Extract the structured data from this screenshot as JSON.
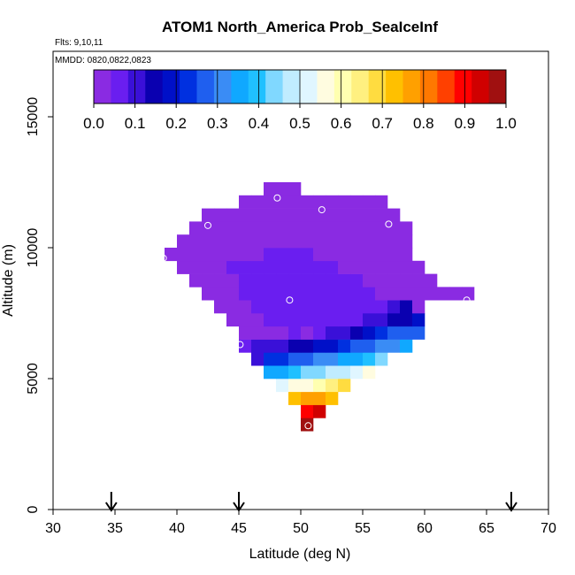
{
  "chart_data": {
    "type": "heatmap",
    "title": "ATOM1 North_America Prob_SeaIceInf",
    "flights_note": "Flts: 9,10,11",
    "dates_note": "MMDD: 0820,0822,0823",
    "xlabel": "Latitude (deg N)",
    "ylabel": "Altitude (m)",
    "xlim": [
      30,
      70
    ],
    "ylim": [
      0,
      17500
    ],
    "xticks": [
      "30",
      "35",
      "40",
      "45",
      "50",
      "55",
      "60",
      "65",
      "70"
    ],
    "yticks": [
      "0",
      "5000",
      "10000",
      "15000"
    ],
    "cell_width_deg": 1,
    "cell_height_m": 500,
    "colorbar": {
      "ticks": [
        "0.0",
        "0.1",
        "0.2",
        "0.3",
        "0.4",
        "0.5",
        "0.6",
        "0.7",
        "0.8",
        "0.9",
        "1.0"
      ],
      "colors": [
        "#8a2be2",
        "#6a1ef0",
        "#3a10d8",
        "#0a00b0",
        "#0010c8",
        "#0030e0",
        "#1f5fef",
        "#3a8cf5",
        "#10a8ff",
        "#20c0ff",
        "#80d8ff",
        "#c0ecff",
        "#e0f6ff",
        "#fffce0",
        "#ffffb0",
        "#fff080",
        "#ffdc40",
        "#ffc000",
        "#ffa000",
        "#ff7800",
        "#ff4000",
        "#ff0000",
        "#d00000",
        "#a01010"
      ]
    },
    "arrows_latitude": [
      34.7,
      45.0,
      67.0
    ],
    "rows": [
      {
        "alt": 3000,
        "lat0": 50,
        "values": [
          0.97
        ]
      },
      {
        "alt": 3500,
        "lat0": 50,
        "values": [
          0.89,
          0.92
        ]
      },
      {
        "alt": 4000,
        "lat0": 49,
        "values": [
          0.72,
          0.76,
          0.78,
          0.74
        ]
      },
      {
        "alt": 4500,
        "lat0": 48,
        "values": [
          0.52,
          0.56,
          0.58,
          0.6,
          0.66,
          0.7
        ]
      },
      {
        "alt": 5000,
        "lat0": 47,
        "values": [
          0.35,
          0.37,
          0.39,
          0.42,
          0.45,
          0.47,
          0.49,
          0.52,
          0.57
        ]
      },
      {
        "alt": 5500,
        "lat0": 46,
        "values": [
          0.12,
          0.22,
          0.24,
          0.26,
          0.28,
          0.3,
          0.32,
          0.34,
          0.36,
          0.38,
          0.42
        ]
      },
      {
        "alt": 6000,
        "lat0": 45,
        "values": [
          0.06,
          0.11,
          0.1,
          0.12,
          0.14,
          0.16,
          0.18,
          0.2,
          0.22,
          0.25,
          0.28,
          0.3,
          0.32,
          0.34
        ]
      },
      {
        "alt": 6500,
        "lat0": 45,
        "values": [
          0.03,
          0.04,
          0.03,
          0.04,
          0.05,
          0.04,
          0.08,
          0.1,
          0.11,
          0.13,
          0.18,
          0.24,
          0.26,
          0.28,
          0.27
        ]
      },
      {
        "alt": 7000,
        "lat0": 44,
        "values": [
          0.02,
          0.03,
          0.04,
          0.05,
          0.06,
          0.05,
          0.05,
          0.05,
          0.06,
          0.07,
          0.08,
          0.1,
          0.12,
          0.14,
          0.16,
          0.18
        ]
      },
      {
        "alt": 7500,
        "lat0": 43,
        "values": [
          0.02,
          0.03,
          0.04,
          0.05,
          0.05,
          0.06,
          0.07,
          0.07,
          0.06,
          0.06,
          0.06,
          0.05,
          0.05,
          0.06,
          0.1,
          0.15,
          0.03
        ]
      },
      {
        "alt": 8000,
        "lat0": 42,
        "values": [
          0.02,
          0.03,
          0.04,
          0.05,
          0.05,
          0.06,
          0.07,
          0.08,
          0.08,
          0.07,
          0.06,
          0.06,
          0.05,
          0.05,
          0.04,
          0.03,
          0.03,
          0.03,
          0.02,
          0.02,
          0.02,
          0.02
        ]
      },
      {
        "alt": 8500,
        "lat0": 41,
        "values": [
          0.02,
          0.03,
          0.04,
          0.04,
          0.05,
          0.05,
          0.06,
          0.06,
          0.07,
          0.07,
          0.07,
          0.06,
          0.05,
          0.05,
          0.04,
          0.04,
          0.04,
          0.03,
          0.03,
          0.03
        ]
      },
      {
        "alt": 9000,
        "lat0": 40,
        "values": [
          0.02,
          0.03,
          0.04,
          0.04,
          0.05,
          0.05,
          0.05,
          0.06,
          0.06,
          0.06,
          0.06,
          0.05,
          0.05,
          0.04,
          0.04,
          0.04,
          0.03,
          0.03,
          0.03,
          0.02
        ]
      },
      {
        "alt": 9500,
        "lat0": 39,
        "values": [
          0.02,
          0.02,
          0.03,
          0.03,
          0.03,
          0.04,
          0.04,
          0.04,
          0.05,
          0.05,
          0.05,
          0.05,
          0.04,
          0.04,
          0.04,
          0.03,
          0.03,
          0.03,
          0.02,
          0.02
        ]
      },
      {
        "alt": 10000,
        "lat0": 40,
        "values": [
          0.02,
          0.02,
          0.02,
          0.03,
          0.03,
          0.03,
          0.03,
          0.03,
          0.04,
          0.04,
          0.04,
          0.04,
          0.04,
          0.03,
          0.03,
          0.03,
          0.03,
          0.02,
          0.02
        ]
      },
      {
        "alt": 10500,
        "lat0": 41,
        "values": [
          0.02,
          0.02,
          0.02,
          0.02,
          0.02,
          0.02,
          0.02,
          0.03,
          0.03,
          0.03,
          0.03,
          0.02,
          0.02,
          0.02,
          0.02,
          0.02,
          0.02,
          0.02
        ]
      },
      {
        "alt": 11000,
        "lat0": 42,
        "values": [
          0.02,
          0.02,
          0.02,
          0.02,
          0.02,
          0.02,
          0.02,
          0.02,
          0.02,
          0.02,
          0.02,
          0.02,
          0.02,
          0.02,
          0.02,
          0.02
        ]
      },
      {
        "alt": 11500,
        "lat0": 45,
        "values": [
          0.02,
          0.02,
          0.02,
          0.02,
          0.02,
          0.02,
          0.02,
          0.02,
          0.02,
          0.02,
          0.02,
          0.02
        ]
      },
      {
        "alt": 12000,
        "lat0": 47,
        "values": [
          0.02,
          0.02,
          0.02
        ]
      }
    ],
    "sample_points": [
      {
        "lat": 48.1,
        "alt": 11900
      },
      {
        "lat": 51.7,
        "alt": 11450
      },
      {
        "lat": 42.5,
        "alt": 10850
      },
      {
        "lat": 57.1,
        "alt": 10900
      },
      {
        "lat": 38.9,
        "alt": 9600
      },
      {
        "lat": 49.1,
        "alt": 8000
      },
      {
        "lat": 63.4,
        "alt": 8000
      },
      {
        "lat": 45.1,
        "alt": 6300
      },
      {
        "lat": 50.6,
        "alt": 3200
      }
    ]
  }
}
